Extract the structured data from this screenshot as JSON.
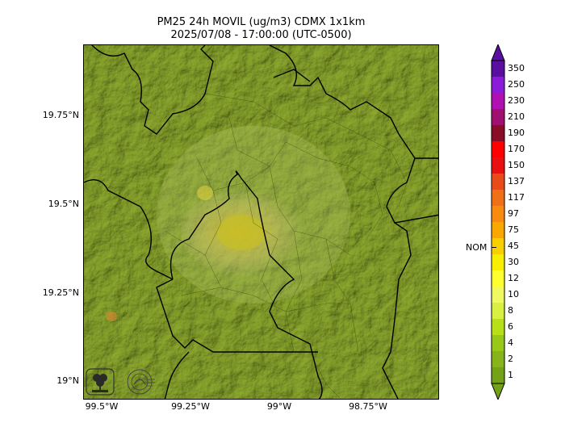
{
  "title": {
    "line1": "PM25 24h MOVIL (ug/m3) CDMX 1x1km",
    "line2": "2025/07/08 - 17:00:00 (UTC-0500)"
  },
  "map": {
    "lat_labels": [
      "19.75°N",
      "19.5°N",
      "19.25°N",
      "19°N"
    ],
    "lon_labels": [
      "99.5°W",
      "99.25°W",
      "99°W",
      "98.75°W"
    ],
    "base_color": "#8aa72e",
    "hotspot_color": "#d9c24a",
    "logos": [
      "sedema-logo",
      "secretaria-logo"
    ]
  },
  "colorbar": {
    "labels": [
      "350",
      "250",
      "230",
      "210",
      "190",
      "170",
      "150",
      "137",
      "117",
      "97",
      "75",
      "45",
      "30",
      "12",
      "10",
      "8",
      "6",
      "4",
      "2",
      "1"
    ],
    "colors": [
      "#5a0fa0",
      "#8b1bd8",
      "#b010b0",
      "#a01070",
      "#8a0d28",
      "#ff0000",
      "#e81010",
      "#e84a1a",
      "#f07018",
      "#f88a10",
      "#f8a800",
      "#f8d000",
      "#f8ee00",
      "#ffff30",
      "#f0fa60",
      "#d8f040",
      "#b8e018",
      "#98c818",
      "#86b41a",
      "#74a216"
    ],
    "nom_label": "NOM"
  }
}
